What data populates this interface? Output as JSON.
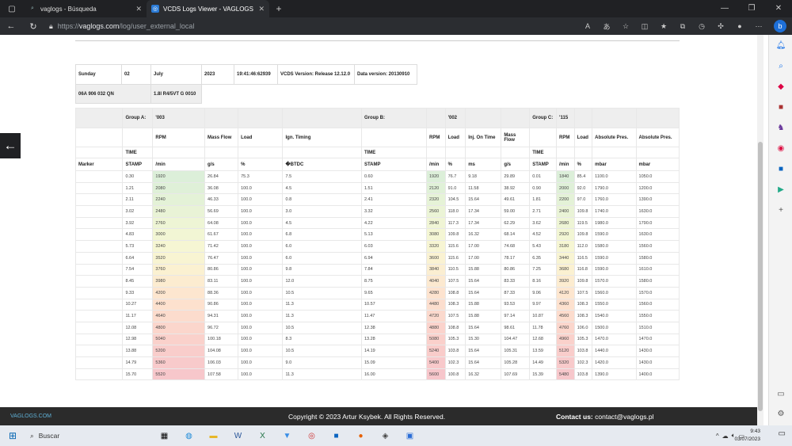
{
  "browser": {
    "tabs": [
      {
        "title": "vaglogs - Búsqueda",
        "active": false
      },
      {
        "title": "VCDS Logs Viewer - VAGLOGS",
        "active": true
      }
    ],
    "url_prefix": "https://",
    "url_host": "vaglogs.com",
    "url_path": "/log/user_external_local"
  },
  "header": {
    "row1": [
      "Sunday",
      "02",
      "July",
      "2023",
      "19:41:46:62939",
      "VCDS Version: Release 12.12.0",
      "Data version: 20130910"
    ],
    "row2": [
      "06A 906 032 QN",
      "1.8l R4/5VT G 0010"
    ]
  },
  "log": {
    "groups": {
      "a_label": "Group A:",
      "a_code": "'003",
      "b_label": "Group B:",
      "b_code": "'002",
      "c_label": "Group C:",
      "c_code": "'115"
    },
    "cols": {
      "rpm": "RPM",
      "mass_flow": "Mass Flow",
      "load": "Load",
      "ign": "Ign. Timing",
      "inj": "Inj. On Time",
      "abs1": "Absolute Pres.",
      "abs2": "Absolute Pres."
    },
    "time_label": "TIME",
    "stamp_label": "STAMP",
    "marker_label": "Marker",
    "units": [
      "/min",
      "g/s",
      "%",
      "\u0000BTDC",
      "STAMP",
      "/min",
      "%",
      "ms",
      "g/s",
      "STAMP",
      "/min",
      "%",
      "mbar",
      "mbar"
    ],
    "rows": [
      [
        "0.30",
        "1920",
        "26.84",
        "75.3",
        "7.5",
        "0.60",
        "1920",
        "76.7",
        "9.18",
        "29.89",
        "0.01",
        "1840",
        "85.4",
        "1100.0",
        "1050.0"
      ],
      [
        "1.21",
        "2080",
        "36.08",
        "100.0",
        "4.5",
        "1.51",
        "2120",
        "91.0",
        "11.58",
        "38.92",
        "0.90",
        "2000",
        "92.0",
        "1790.0",
        "1200.0"
      ],
      [
        "2.11",
        "2240",
        "46.33",
        "100.0",
        "0.8",
        "2.41",
        "2320",
        "104.5",
        "15.64",
        "49.61",
        "1.81",
        "2200",
        "97.0",
        "1760.0",
        "1390.0"
      ],
      [
        "3.02",
        "2480",
        "56.69",
        "100.0",
        "3.0",
        "3.32",
        "2560",
        "118.0",
        "17.34",
        "59.00",
        "2.71",
        "2400",
        "109.8",
        "1740.0",
        "1630.0"
      ],
      [
        "3.92",
        "2760",
        "64.08",
        "100.0",
        "4.5",
        "4.22",
        "2840",
        "117.3",
        "17.34",
        "62.29",
        "3.62",
        "2680",
        "119.5",
        "1980.0",
        "1790.0"
      ],
      [
        "4.83",
        "3000",
        "61.67",
        "100.0",
        "6.8",
        "5.13",
        "3080",
        "109.8",
        "16.32",
        "68.14",
        "4.52",
        "2920",
        "109.8",
        "1590.0",
        "1630.0"
      ],
      [
        "5.73",
        "3240",
        "71.42",
        "100.0",
        "6.0",
        "6.03",
        "3320",
        "115.6",
        "17.00",
        "74.68",
        "5.43",
        "3180",
        "112.0",
        "1580.0",
        "1560.0"
      ],
      [
        "6.64",
        "3520",
        "76.47",
        "100.0",
        "6.0",
        "6.94",
        "3600",
        "115.6",
        "17.00",
        "78.17",
        "6.35",
        "3440",
        "116.5",
        "1590.0",
        "1580.0"
      ],
      [
        "7.54",
        "3760",
        "80.86",
        "100.0",
        "9.8",
        "7.84",
        "3840",
        "110.5",
        "15.88",
        "80.86",
        "7.25",
        "3680",
        "116.8",
        "1590.0",
        "1610.0"
      ],
      [
        "8.45",
        "3980",
        "83.11",
        "100.0",
        "12.0",
        "8.75",
        "4040",
        "107.5",
        "15.64",
        "83.33",
        "8.16",
        "3920",
        "109.8",
        "1570.0",
        "1580.0"
      ],
      [
        "9.33",
        "4200",
        "88.36",
        "100.0",
        "10.5",
        "9.65",
        "4280",
        "108.8",
        "15.64",
        "87.33",
        "9.06",
        "4120",
        "107.5",
        "1560.0",
        "1570.0"
      ],
      [
        "10.27",
        "4400",
        "90.86",
        "100.0",
        "11.3",
        "10.57",
        "4480",
        "108.3",
        "15.88",
        "93.53",
        "9.97",
        "4360",
        "108.3",
        "1550.0",
        "1560.0"
      ],
      [
        "11.17",
        "4640",
        "94.31",
        "100.0",
        "11.3",
        "11.47",
        "4720",
        "107.5",
        "15.88",
        "97.14",
        "10.87",
        "4560",
        "108.3",
        "1540.0",
        "1550.0"
      ],
      [
        "12.08",
        "4800",
        "96.72",
        "100.0",
        "10.5",
        "12.38",
        "4880",
        "108.8",
        "15.64",
        "98.61",
        "11.78",
        "4760",
        "106.0",
        "1500.0",
        "1510.0"
      ],
      [
        "12.98",
        "5040",
        "100.18",
        "100.0",
        "8.3",
        "13.28",
        "5080",
        "105.3",
        "15.30",
        "104.47",
        "12.68",
        "4960",
        "105.3",
        "1470.0",
        "1470.0"
      ],
      [
        "13.88",
        "5200",
        "104.08",
        "100.0",
        "10.5",
        "14.19",
        "5240",
        "103.8",
        "15.64",
        "105.31",
        "13.59",
        "5120",
        "103.8",
        "1440.0",
        "1430.0"
      ],
      [
        "14.79",
        "5360",
        "106.03",
        "100.0",
        "9.0",
        "15.09",
        "5400",
        "102.3",
        "15.64",
        "105.28",
        "14.49",
        "5320",
        "102.3",
        "1420.0",
        "1430.0"
      ],
      [
        "15.70",
        "5520",
        "107.58",
        "100.0",
        "11.3",
        "16.00",
        "5600",
        "100.8",
        "16.32",
        "107.69",
        "15.39",
        "5480",
        "103.8",
        "1390.0",
        "1400.0"
      ]
    ],
    "rpm_colors": [
      "#dcefd9",
      "#dff0d8",
      "#e4f2d7",
      "#e9f3d6",
      "#eef5d5",
      "#f2f6d4",
      "#f6f6d3",
      "#f8f4d2",
      "#fbf1d1",
      "#fcecd0",
      "#fde6cf",
      "#fde1ce",
      "#fcdccd",
      "#fbd6cc",
      "#fad1cb",
      "#f9cdcb",
      "#f8cacb",
      "#f7c7cb"
    ],
    "rpm_b_colors": [
      "#dcefd9",
      "#e0f1d8",
      "#e6f3d7",
      "#ebf4d6",
      "#f0f5d5",
      "#f4f6d4",
      "#f7f5d3",
      "#faf2d2",
      "#fbeed1",
      "#fce9d0",
      "#fde3cf",
      "#fcdece",
      "#fbd9cd",
      "#fbd3cc",
      "#fad0cb",
      "#f9ccca",
      "#f8c9cb",
      "#f7c6cb"
    ]
  },
  "footer": {
    "brand": "VAGLOGS.COM",
    "copyright": "Copyright © 2023 Artur Ksybek. All Rights Reserved.",
    "contact_label": "Contact us:",
    "contact_email": "contact@vaglogs.pl"
  },
  "taskbar": {
    "search_label": "Buscar",
    "time": "9:43",
    "date": "03/07/2023"
  }
}
